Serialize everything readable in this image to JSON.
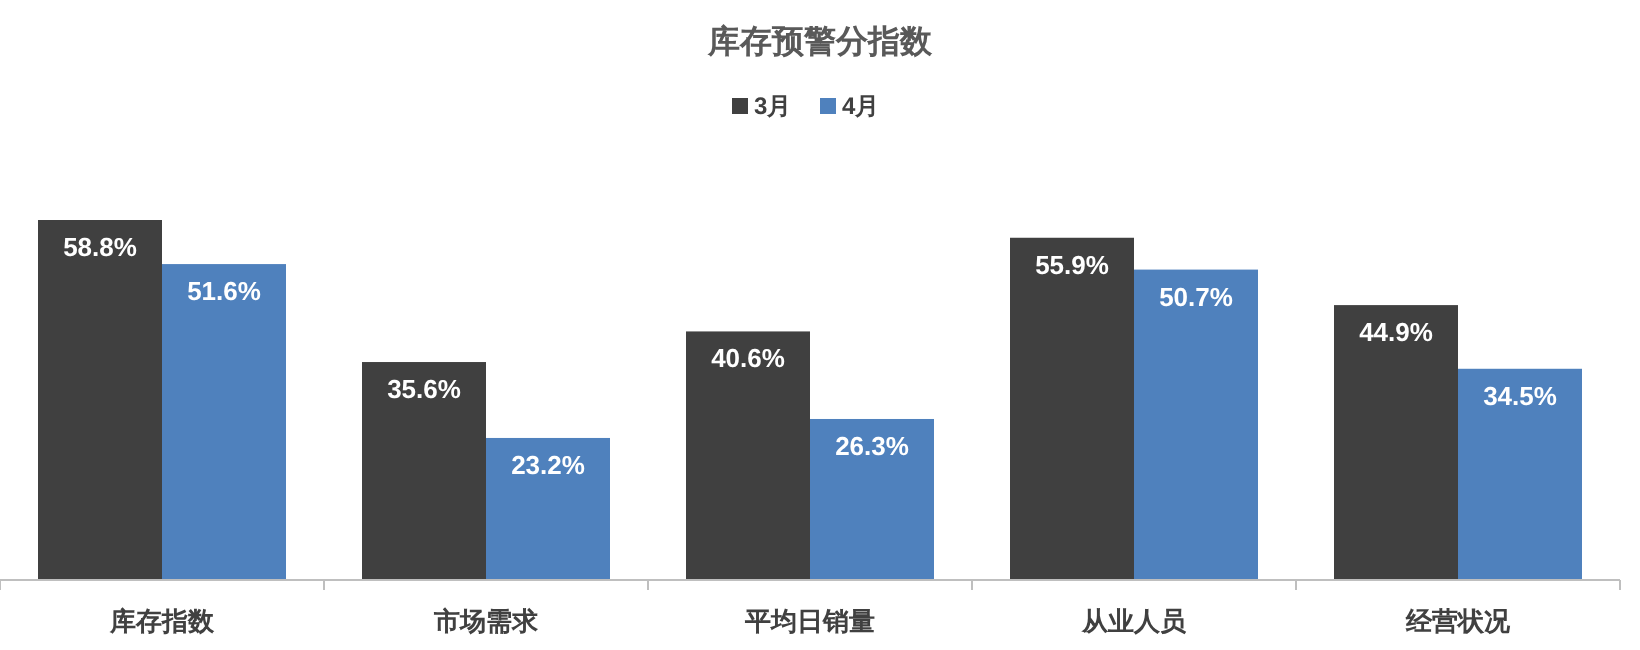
{
  "chart_data": {
    "type": "bar",
    "title": "库存预警分指数",
    "categories": [
      "库存指数",
      "市场需求",
      "平均日销量",
      "从业人员",
      "经营状况"
    ],
    "series": [
      {
        "name": "3月",
        "color": "#404040",
        "values": [
          58.8,
          35.6,
          40.6,
          55.9,
          44.9
        ],
        "value_labels": [
          "58.8%",
          "35.6%",
          "40.6%",
          "55.9%",
          "44.9%"
        ]
      },
      {
        "name": "4月",
        "color": "#4f81bd",
        "values": [
          51.6,
          23.2,
          26.3,
          50.7,
          34.5
        ],
        "value_labels": [
          "51.6%",
          "23.2%",
          "26.3%",
          "50.7%",
          "34.5%"
        ]
      }
    ],
    "legend": "top",
    "grid": false
  }
}
